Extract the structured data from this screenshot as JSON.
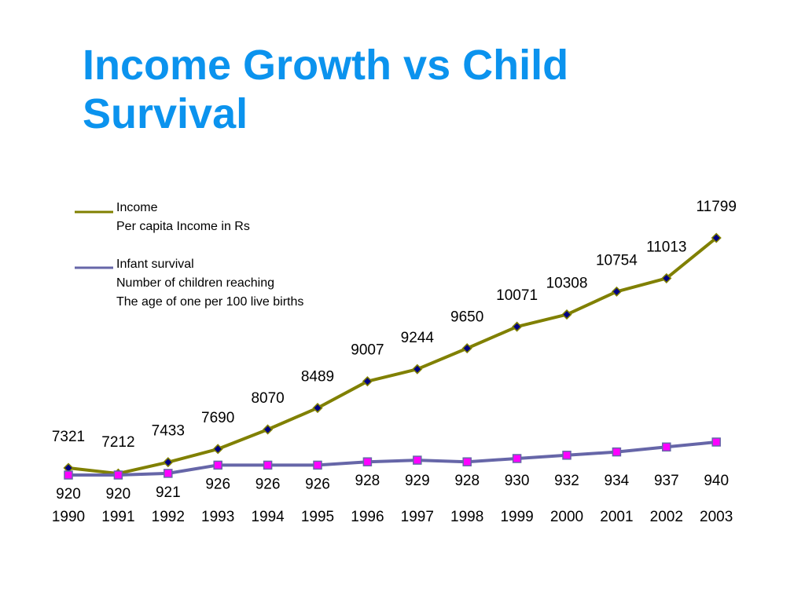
{
  "slide": {
    "title_line1": "Income Growth vs Child",
    "title_line2": "Survival"
  },
  "chart_data": {
    "type": "line",
    "title": "Income Growth vs Child Survival",
    "x": [
      "1990",
      "1991",
      "1992",
      "1993",
      "1994",
      "1995",
      "1996",
      "1997",
      "1998",
      "1999",
      "2000",
      "2001",
      "2002",
      "2003"
    ],
    "series": [
      {
        "name": "Income",
        "legend_lines": [
          "Income",
          "Per capita Income in Rs"
        ],
        "values": [
          7321,
          7212,
          7433,
          7690,
          8070,
          8489,
          9007,
          9244,
          9650,
          10071,
          10308,
          10754,
          11013,
          11799
        ],
        "line_color": "#808000",
        "marker": "diamond",
        "marker_fill": "#000080",
        "label_position": "above"
      },
      {
        "name": "Infant survival",
        "legend_lines": [
          "Infant survival",
          "Number of children reaching",
          "The age of one per 100 live births"
        ],
        "values": [
          920,
          920,
          921,
          926,
          926,
          926,
          928,
          929,
          928,
          930,
          932,
          934,
          937,
          940
        ],
        "line_color": "#6666a8",
        "marker": "square",
        "marker_fill": "#ff00ff",
        "label_position": "below"
      }
    ],
    "legend_position": "top-left",
    "grid": false,
    "axes_visible": false
  }
}
